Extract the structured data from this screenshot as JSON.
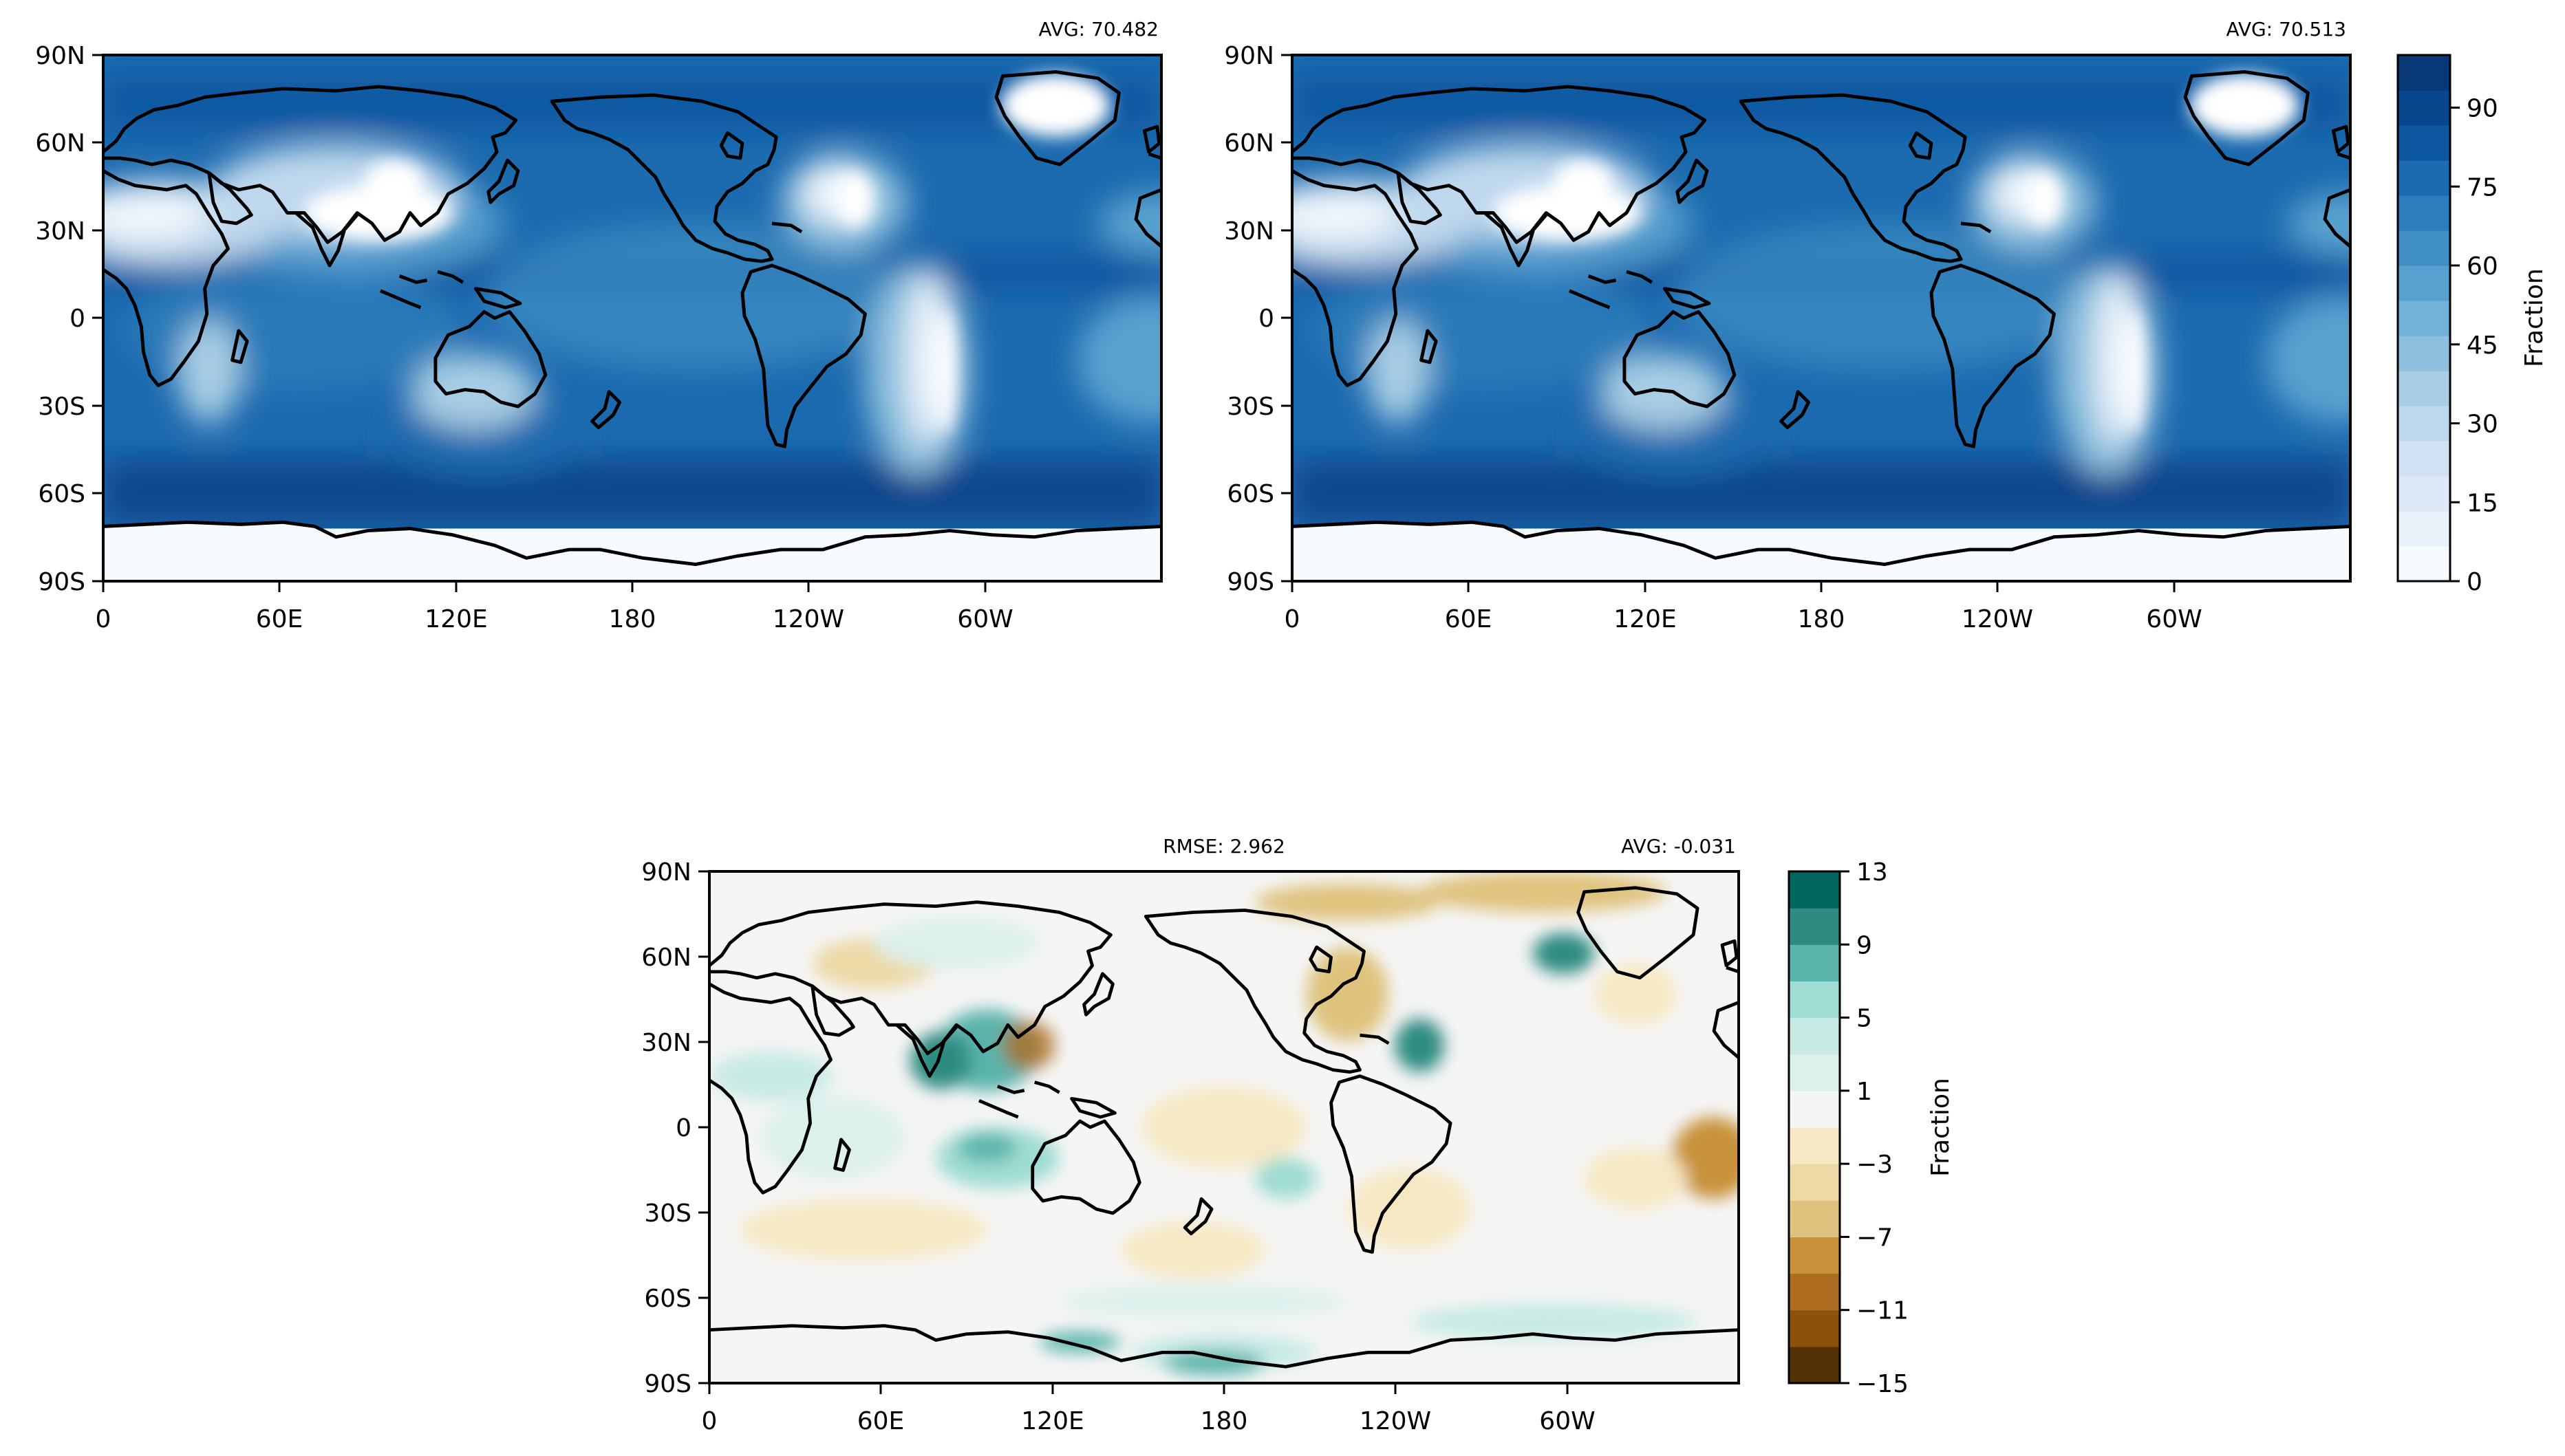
{
  "panels": [
    {
      "id": "top-left",
      "avg_label": "AVG: 70.482",
      "colormap": "blues",
      "x_ticks": [
        "0",
        "60E",
        "120E",
        "180",
        "120W",
        "60W"
      ],
      "y_ticks": [
        "90N",
        "60N",
        "30N",
        "0",
        "30S",
        "60S",
        "90S"
      ]
    },
    {
      "id": "top-right",
      "avg_label": "AVG: 70.513",
      "colormap": "blues",
      "x_ticks": [
        "0",
        "60E",
        "120E",
        "180",
        "120W",
        "60W"
      ],
      "y_ticks": [
        "90N",
        "60N",
        "30N",
        "0",
        "30S",
        "60S",
        "90S"
      ]
    },
    {
      "id": "bottom-diff",
      "rmse_label": "RMSE: 2.962",
      "avg_label": "AVG: -0.031",
      "colormap": "brown-teal",
      "x_ticks": [
        "0",
        "60E",
        "120E",
        "180",
        "120W",
        "60W"
      ],
      "y_ticks": [
        "90N",
        "60N",
        "30N",
        "0",
        "30S",
        "60S",
        "90S"
      ]
    }
  ],
  "colorbars": [
    {
      "id": "top-colorbar",
      "label": "Fraction",
      "tick_values": [
        0,
        15,
        30,
        45,
        60,
        75,
        90
      ],
      "tick_labels": [
        "0",
        "15",
        "30",
        "45",
        "60",
        "75",
        "90"
      ],
      "range": [
        0,
        100
      ],
      "colors": [
        "#f7fbff",
        "#e9f2fb",
        "#dde9f7",
        "#cfe1f2",
        "#c0d8ed",
        "#a8cee4",
        "#8ec0de",
        "#72b2d8",
        "#58a1cf",
        "#4090c5",
        "#2c7dbc",
        "#1c6aaf",
        "#0e58a2",
        "#08478d",
        "#083876"
      ]
    },
    {
      "id": "bottom-colorbar",
      "label": "Fraction",
      "tick_values": [
        -15,
        -11,
        -7,
        -3,
        1,
        5,
        9,
        13
      ],
      "tick_labels": [
        "−15",
        "−11",
        "−7",
        "−3",
        "1",
        "5",
        "9",
        "13"
      ],
      "range": [
        -15,
        13
      ],
      "colors": [
        "#543005",
        "#8c510a",
        "#ae6c20",
        "#c8923a",
        "#dfc27d",
        "#ecd9a6",
        "#f6e8c3",
        "#f5f5f5",
        "#dcf0ec",
        "#c7eae5",
        "#9fdcd1",
        "#5ab4ac",
        "#2e8b82",
        "#01665e"
      ]
    }
  ]
}
